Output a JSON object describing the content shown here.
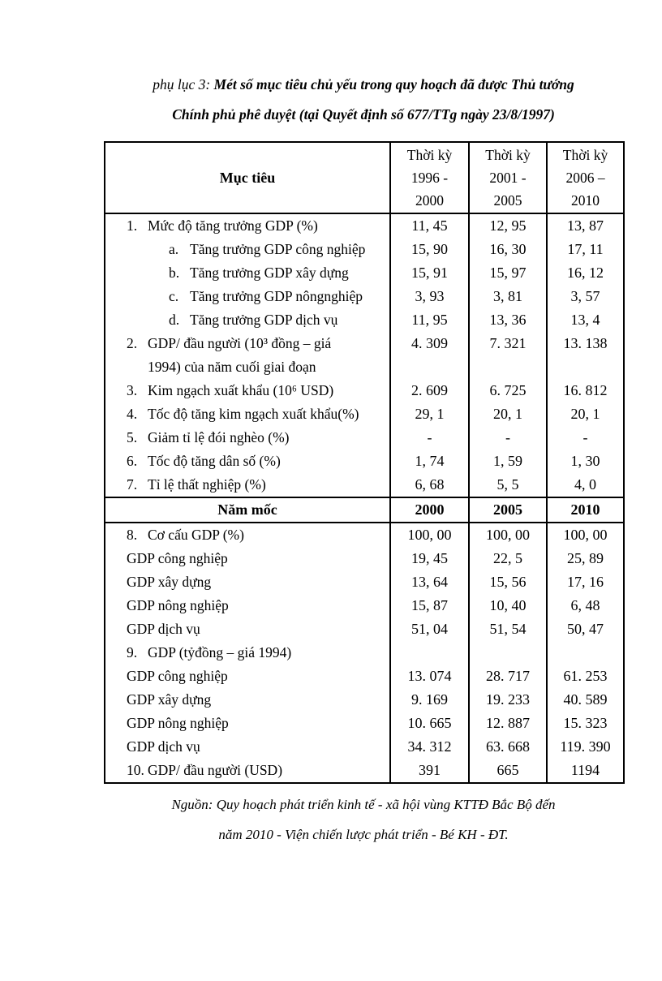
{
  "colors": {
    "text": "#000000",
    "background": "#ffffff",
    "border": "#000000"
  },
  "title": {
    "prefix": "phụ lục 3:",
    "line1": "Mét số mục tiêu chủ yếu trong quy hoạch đã được Thủ tướng",
    "line2": "Chính phủ phê duyệt (tại Quyết định số 677/TTg ngày 23/8/1997)"
  },
  "table": {
    "header": {
      "label": "Mục tiêu",
      "periods": [
        "Thời kỳ\n1996 -\n2000",
        "Thời kỳ\n2001 -\n2005",
        "Thời kỳ\n2006 –\n2010"
      ]
    },
    "section1": [
      {
        "num": "1.",
        "label": "Mức độ tăng trưởng GDP (%)",
        "values": [
          "11, 45",
          "12, 95",
          "13, 87"
        ]
      },
      {
        "num": "a.",
        "label": "Tăng trưởng GDP công nghiệp",
        "values": [
          "15, 90",
          "16, 30",
          "17, 11"
        ],
        "indent": true
      },
      {
        "num": "b.",
        "label": "Tăng trưởng GDP xây dựng",
        "values": [
          "15, 91",
          "15, 97",
          "16, 12"
        ],
        "indent": true
      },
      {
        "num": "c.",
        "label": "Tăng trưởng GDP nôngnghiệp",
        "values": [
          "3, 93",
          "3, 81",
          "3, 57"
        ],
        "indent": true
      },
      {
        "num": "d.",
        "label": "Tăng trưởng GDP dịch vụ",
        "values": [
          "11, 95",
          "13, 36",
          "13, 4"
        ],
        "indent": true
      },
      {
        "num": "2.",
        "label": "GDP/ đầu người (10³ đồng – giá\n1994) của năm cuối giai đoạn",
        "values": [
          "4. 309",
          "7. 321",
          "13. 138"
        ],
        "top": true
      },
      {
        "num": "3.",
        "label": "Kim ngạch xuất khẩu (10⁶ USD)",
        "values": [
          "2. 609",
          "6. 725",
          "16. 812"
        ]
      },
      {
        "num": "4.",
        "label": "Tốc độ tăng kim ngạch xuất khẩu(%)",
        "values": [
          "29, 1",
          "20, 1",
          "20, 1"
        ]
      },
      {
        "num": "5.",
        "label": "Giảm tỉ lệ đói nghèo (%)",
        "values": [
          "-",
          "-",
          "-"
        ]
      },
      {
        "num": "6.",
        "label": "Tốc độ tăng dân số (%)",
        "values": [
          "1, 74",
          "1, 59",
          "1, 30"
        ]
      },
      {
        "num": "7.",
        "label": "Tỉ lệ thất nghiệp (%)",
        "values": [
          "6, 68",
          "5, 5",
          "4, 0"
        ]
      }
    ],
    "milestone": {
      "label": "Năm mốc",
      "values": [
        "2000",
        "2005",
        "2010"
      ]
    },
    "section2": [
      {
        "num": "8.",
        "label": "Cơ cấu GDP (%)",
        "values": [
          "100, 00",
          "100, 00",
          "100, 00"
        ]
      },
      {
        "num": "",
        "label": "GDP công nghiệp",
        "values": [
          "19, 45",
          "22, 5",
          "25, 89"
        ]
      },
      {
        "num": "",
        "label": "GDP xây dựng",
        "values": [
          "13, 64",
          "15, 56",
          "17, 16"
        ]
      },
      {
        "num": "",
        "label": "GDP nông nghiệp",
        "values": [
          "15, 87",
          "10, 40",
          "6, 48"
        ]
      },
      {
        "num": "",
        "label": "GDP dịch vụ",
        "values": [
          "51, 04",
          "51, 54",
          "50, 47"
        ]
      },
      {
        "num": "9.",
        "label": "GDP (tỷđồng – giá 1994)",
        "values": [
          "",
          "",
          ""
        ]
      },
      {
        "num": "",
        "label": "GDP công nghiệp",
        "values": [
          "13. 074",
          "28. 717",
          "61. 253"
        ]
      },
      {
        "num": "",
        "label": "GDP xây dựng",
        "values": [
          "9. 169",
          "19. 233",
          "40. 589"
        ]
      },
      {
        "num": "",
        "label": "GDP nông nghiệp",
        "values": [
          "10. 665",
          "12. 887",
          "15. 323"
        ]
      },
      {
        "num": "",
        "label": "GDP dịch vụ",
        "values": [
          "34. 312",
          "63. 668",
          "119. 390"
        ]
      },
      {
        "num": "10.",
        "label": "GDP/ đầu người (USD)",
        "values": [
          "391",
          "665",
          "1194"
        ]
      }
    ]
  },
  "footer": {
    "line1": "Nguồn: Quy hoạch phát triển kinh tế - xã hội vùng KTTĐ Bắc Bộ đến",
    "line2": "năm 2010 - Viện chiến lược phát triển - Bé KH - ĐT."
  }
}
